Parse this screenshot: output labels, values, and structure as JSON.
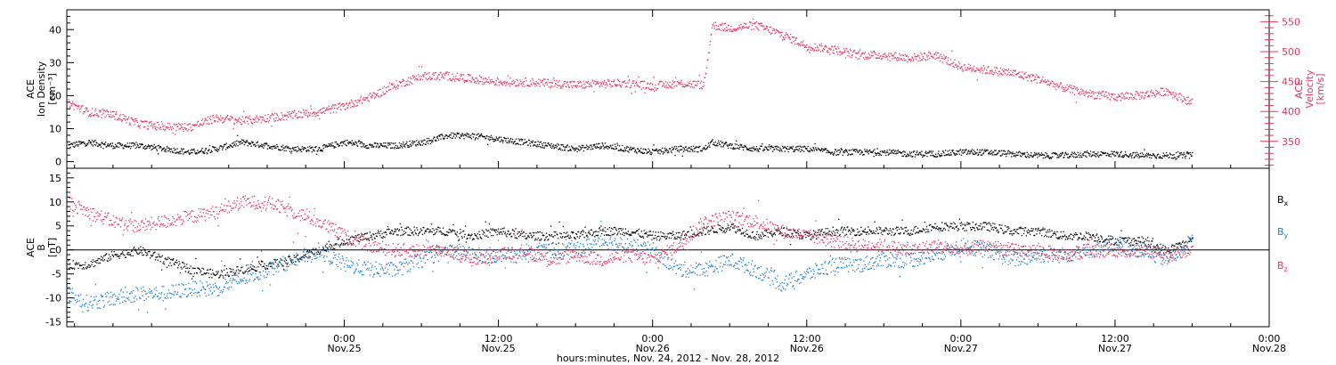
{
  "figure": {
    "xlabel": "hours:minutes, Nov. 24, 2012 - Nov. 28, 2012"
  },
  "colors": {
    "black": "#000000",
    "pink": "#e8365d",
    "blue": "#1f7fd6"
  },
  "x_axis": {
    "range_hours": [
      -21.6,
      72
    ],
    "ticks": [
      {
        "hour": 0,
        "time": "0:00",
        "date": "Nov.25"
      },
      {
        "hour": 12,
        "time": "12:00",
        "date": "Nov.25"
      },
      {
        "hour": 24,
        "time": "0:00",
        "date": "Nov.26"
      },
      {
        "hour": 36,
        "time": "12:00",
        "date": "Nov.26"
      },
      {
        "hour": 48,
        "time": "0:00",
        "date": "Nov.27"
      },
      {
        "hour": 60,
        "time": "12:00",
        "date": "Nov.27"
      },
      {
        "hour": 72,
        "time": "0:00",
        "date": "Nov.28"
      }
    ]
  },
  "chart_data": [
    {
      "type": "scatter",
      "panel": "top",
      "y_left": {
        "label_lines": [
          "ACE",
          "Ion Density",
          "[cm⁻³]"
        ],
        "ylim": [
          -2,
          46
        ],
        "ticks": [
          0,
          10,
          20,
          30,
          40
        ]
      },
      "y_right": {
        "label_lines": [
          "ACE",
          "Velocity",
          "[km/s]"
        ],
        "ylim": [
          305,
          570
        ],
        "ticks": [
          350,
          400,
          450,
          500,
          550
        ]
      },
      "x_unit": "hours since 0:00 Nov.25 2012",
      "series": [
        {
          "color": "black",
          "axis": "left",
          "x": [
            -21.5,
            -20,
            -18,
            -16,
            -14,
            -12,
            -10,
            -8,
            -6,
            -4,
            -2,
            0,
            2,
            4,
            6,
            8,
            10,
            12,
            14,
            16,
            18,
            20,
            22,
            24,
            26,
            28,
            28.6,
            30,
            32,
            34,
            36,
            38,
            40,
            42,
            44,
            46,
            48,
            50,
            52,
            54,
            56,
            58,
            60,
            62,
            64,
            66
          ],
          "values": [
            5,
            6,
            5,
            5,
            4,
            3,
            4,
            6,
            5,
            4,
            4,
            6,
            5,
            5,
            6,
            8,
            8,
            7,
            6,
            5,
            4,
            5,
            4,
            3,
            4,
            4,
            6,
            5,
            4,
            4,
            4,
            3,
            3,
            3,
            2.5,
            2.5,
            3,
            3,
            2.5,
            2,
            2,
            2.5,
            2.5,
            2,
            2,
            2
          ]
        },
        {
          "color": "pink",
          "axis": "right",
          "x": [
            -21.5,
            -20,
            -18,
            -16,
            -14,
            -12,
            -10,
            -8,
            -6,
            -4,
            -2,
            0,
            2,
            4,
            6,
            8,
            10,
            12,
            14,
            16,
            18,
            20,
            22,
            24,
            26,
            28,
            28.6,
            30,
            32,
            34,
            36,
            38,
            40,
            42,
            44,
            46,
            48,
            50,
            52,
            54,
            56,
            58,
            60,
            62,
            64,
            66
          ],
          "values": [
            415,
            400,
            395,
            380,
            375,
            375,
            390,
            385,
            390,
            395,
            400,
            410,
            425,
            445,
            460,
            460,
            455,
            450,
            450,
            448,
            445,
            447,
            448,
            443,
            448,
            445,
            545,
            540,
            545,
            530,
            510,
            505,
            495,
            495,
            490,
            495,
            475,
            470,
            465,
            455,
            440,
            430,
            425,
            428,
            435,
            415
          ]
        }
      ]
    },
    {
      "type": "scatter",
      "panel": "bottom",
      "y_left": {
        "label_lines": [
          "ACE",
          "B",
          "[nT]"
        ],
        "ylim": [
          -16,
          17
        ],
        "ticks": [
          -15,
          -10,
          -5,
          0,
          5,
          10,
          15
        ]
      },
      "zero_line": true,
      "x_unit": "hours since 0:00 Nov.25 2012",
      "series": [
        {
          "name": "B",
          "subscript": "x",
          "color": "black",
          "x": [
            -21.5,
            -20,
            -18,
            -16,
            -14,
            -12,
            -10,
            -8,
            -6,
            -4,
            -2,
            0,
            2,
            4,
            6,
            8,
            10,
            12,
            14,
            16,
            18,
            20,
            22,
            24,
            26,
            28,
            30,
            32,
            34,
            36,
            38,
            40,
            42,
            44,
            46,
            48,
            50,
            52,
            54,
            56,
            58,
            60,
            62,
            64,
            66
          ],
          "values": [
            -3,
            -3,
            -1,
            0,
            -2,
            -4,
            -5,
            -4,
            -3,
            -2,
            0,
            2,
            3,
            4,
            4,
            4,
            3,
            4,
            3,
            3,
            3,
            4,
            4,
            3,
            3,
            4,
            5,
            3,
            4,
            3,
            4,
            4,
            4,
            4,
            5,
            5,
            5,
            4,
            4,
            3,
            3,
            2,
            2,
            0,
            2
          ]
        },
        {
          "name": "B",
          "subscript": "y",
          "color": "blue",
          "x": [
            -21.5,
            -20,
            -18,
            -16,
            -14,
            -12,
            -10,
            -8,
            -6,
            -4,
            -2,
            0,
            2,
            4,
            6,
            8,
            10,
            12,
            14,
            16,
            18,
            20,
            22,
            24,
            26,
            28,
            30,
            32,
            34,
            36,
            38,
            40,
            42,
            44,
            46,
            48,
            50,
            52,
            54,
            56,
            58,
            60,
            62,
            64,
            66
          ],
          "values": [
            -9,
            -11,
            -10,
            -9,
            -9,
            -8,
            -8,
            -6,
            -4,
            -2,
            0,
            -3,
            -4,
            -4,
            -2,
            0,
            -1,
            -1,
            -1,
            0,
            0,
            2,
            1,
            0,
            -4,
            -4,
            -2,
            -4,
            -7,
            -5,
            -3,
            -3,
            -2,
            -2,
            -1,
            1,
            0,
            -2,
            -1,
            -1,
            0,
            1,
            0,
            -2,
            2
          ]
        },
        {
          "name": "B",
          "subscript": "z",
          "color": "pink",
          "x": [
            -21.5,
            -20,
            -18,
            -16,
            -14,
            -12,
            -10,
            -8,
            -6,
            -4,
            -2,
            0,
            2,
            4,
            6,
            8,
            10,
            12,
            14,
            16,
            18,
            20,
            22,
            24,
            26,
            28,
            30,
            32,
            34,
            36,
            38,
            40,
            42,
            44,
            46,
            48,
            50,
            52,
            54,
            56,
            58,
            60,
            62,
            64,
            66
          ],
          "values": [
            10,
            8,
            6,
            5,
            6,
            7,
            8,
            10,
            10,
            8,
            6,
            3,
            1,
            0,
            0,
            0,
            -2,
            -1,
            0,
            -2,
            -1,
            -2,
            -1,
            -2,
            1,
            6,
            7,
            6,
            4,
            3,
            2,
            1,
            1,
            0,
            1,
            0,
            1,
            0,
            0,
            -1,
            0,
            0,
            0,
            -1,
            0
          ]
        }
      ]
    }
  ]
}
